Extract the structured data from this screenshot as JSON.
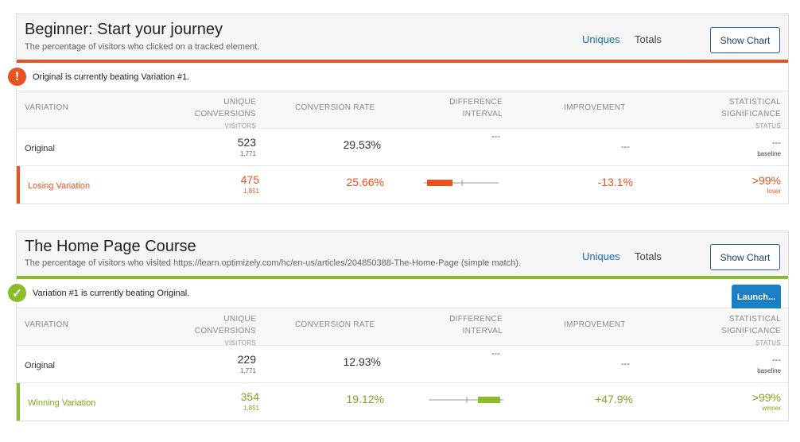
{
  "colors": {
    "loser": "#e8531f",
    "winner": "#8cbb2b",
    "accent": "#1f6cad"
  },
  "columns": {
    "variation": "VARIATION",
    "unique_conversions": [
      "UNIQUE",
      "CONVERSIONS"
    ],
    "visitors": "VISITORS",
    "conversion_rate": "CONVERSION RATE",
    "difference_interval": [
      "DIFFERENCE",
      "INTERVAL"
    ],
    "improvement": "IMPROVEMENT",
    "statistical_significance": [
      "STATISTICAL",
      "SIGNIFICANCE"
    ],
    "status": "STATUS"
  },
  "experiments": [
    {
      "title": "Beginner: Start your journey",
      "subtitle": "The percentage of visitors who clicked on a tracked element.",
      "tabs": {
        "uniques": "Uniques",
        "totals": "Totals"
      },
      "show_chart": "Show Chart",
      "alert_icon": "exclamation-icon",
      "alert_symbol": "!",
      "alert": "Original is currently beating Variation #1.",
      "rows": [
        {
          "name": "Original",
          "conversions": "523",
          "visitors": "1,771",
          "rate": "29.53%",
          "interval": "---",
          "improvement": "---",
          "significance": "---",
          "status": "baseline"
        },
        {
          "name": "Losing Variation",
          "conversions": "475",
          "visitors": "1,851",
          "rate": "25.66%",
          "improvement": "-13.1%",
          "significance": ">99%",
          "status": "loser"
        }
      ]
    },
    {
      "title": "The Home Page Course",
      "subtitle": "The percentage of visitors who visited https://learn.optimizely.com/hc/en-us/articles/204850388-The-Home-Page (simple match).",
      "tabs": {
        "uniques": "Uniques",
        "totals": "Totals"
      },
      "show_chart": "Show Chart",
      "alert_icon": "checkmark-icon",
      "alert_symbol": "✓",
      "alert": "Variation #1 is currently beating Original.",
      "launch": "Launch...",
      "rows": [
        {
          "name": "Original",
          "conversions": "229",
          "visitors": "1,771",
          "rate": "12.93%",
          "interval": "---",
          "improvement": "---",
          "significance": "---",
          "status": "baseline"
        },
        {
          "name": "Winning Variation",
          "conversions": "354",
          "visitors": "1,851",
          "rate": "19.12%",
          "improvement": "+47.9%",
          "significance": ">99%",
          "status": "winner"
        }
      ]
    }
  ]
}
